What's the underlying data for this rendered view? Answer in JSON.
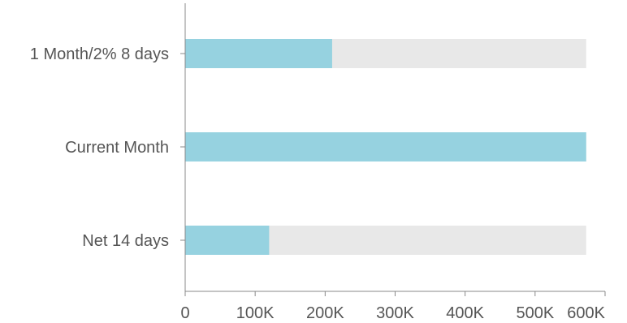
{
  "chart_data": {
    "type": "bar",
    "orientation": "horizontal",
    "categories": [
      "1 Month/2% 8 days",
      "Current Month",
      "Net 14 days"
    ],
    "series": [
      {
        "values": [
          210000,
          573000,
          120000
        ]
      }
    ],
    "track_values": [
      573000,
      573000,
      573000
    ],
    "xlim": [
      0,
      600000
    ],
    "x_ticks": [
      0,
      100000,
      200000,
      300000,
      400000,
      500000,
      600000
    ],
    "x_tick_labels": [
      "0",
      "100K",
      "200K",
      "300K",
      "400K",
      "500K",
      "600K"
    ],
    "grid": false,
    "legend": "none",
    "colors": {
      "bar": "#96D2E0",
      "track": "#E8E8E8",
      "axis": "#888888",
      "text": "#555555"
    }
  }
}
